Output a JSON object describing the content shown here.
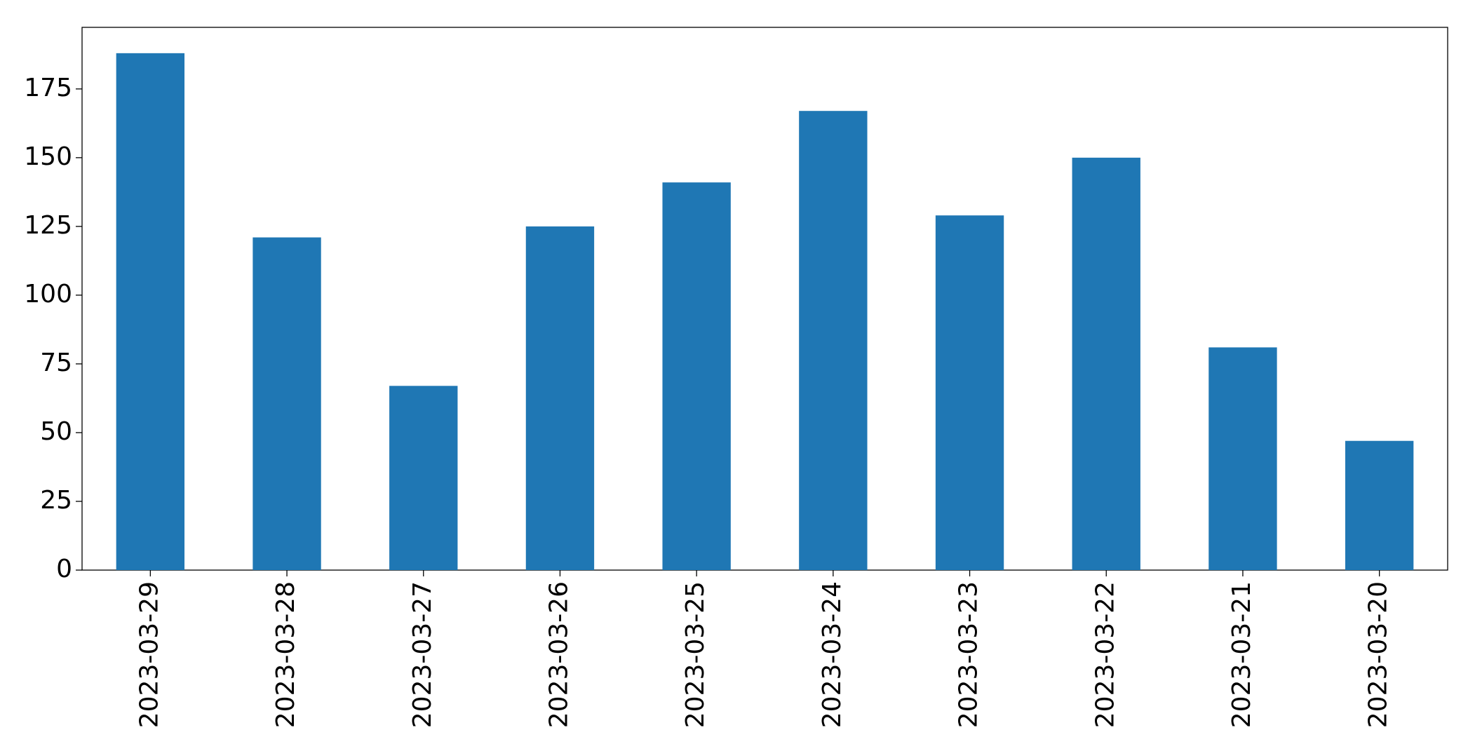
{
  "chart_data": {
    "type": "bar",
    "categories": [
      "2023-03-29",
      "2023-03-28",
      "2023-03-27",
      "2023-03-26",
      "2023-03-25",
      "2023-03-24",
      "2023-03-23",
      "2023-03-22",
      "2023-03-21",
      "2023-03-20"
    ],
    "values": [
      188,
      121,
      67,
      125,
      141,
      167,
      129,
      150,
      81,
      47
    ],
    "color": "#1f77b4",
    "ylim": [
      0,
      197.4
    ],
    "yticks": [
      0,
      25,
      50,
      75,
      100,
      125,
      150,
      175
    ],
    "grid": false
  }
}
